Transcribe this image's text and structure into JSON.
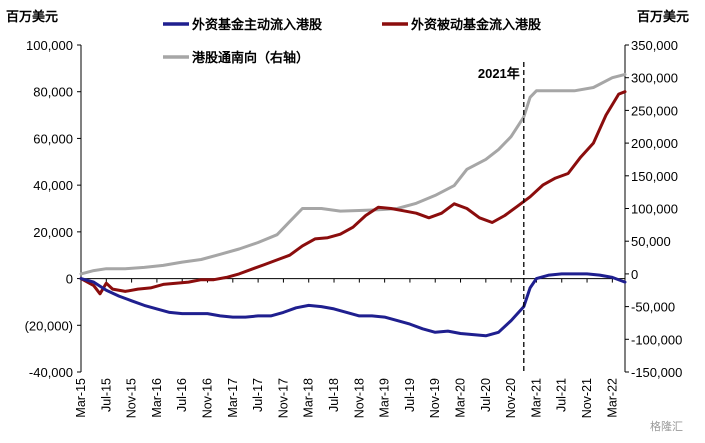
{
  "chart_data": {
    "type": "line",
    "y_left_label": "百万美元",
    "y_right_label": "百万美元",
    "y_left_lim": [
      -40000,
      100000
    ],
    "y_right_lim": [
      -150000,
      350000
    ],
    "y_left_ticks": [
      "100,000",
      "80,000",
      "60,000",
      "40,000",
      "20,000",
      "0",
      "(20,000)",
      "-40,000"
    ],
    "y_right_ticks": [
      "350,000",
      "300,000",
      "250,000",
      "200,000",
      "150,000",
      "100,000",
      "50,000",
      "0",
      "-50,000",
      "-100,000",
      "-150,000"
    ],
    "x_ticks": [
      "Mar-15",
      "Jul-15",
      "Nov-15",
      "Mar-16",
      "Jul-16",
      "Nov-16",
      "Mar-17",
      "Jul-17",
      "Nov-17",
      "Mar-18",
      "Jul-18",
      "Nov-18",
      "Mar-19",
      "Jul-19",
      "Nov-19",
      "Mar-20",
      "Jul-20",
      "Nov-20",
      "Mar-21",
      "Jul-21",
      "Nov-21",
      "Mar-22"
    ],
    "annotation": "2021年",
    "annotation_x": "2021-01",
    "grid": false,
    "legend_position": "top",
    "series": [
      {
        "name": "外资基金主动流入港股",
        "axis": "left",
        "color": "#1f1f8f",
        "points": [
          [
            "2015-03",
            0
          ],
          [
            "2015-05",
            -1500
          ],
          [
            "2015-07",
            -5000
          ],
          [
            "2015-09",
            -7500
          ],
          [
            "2015-11",
            -9500
          ],
          [
            "2016-01",
            -11500
          ],
          [
            "2016-03",
            -13000
          ],
          [
            "2016-05",
            -14500
          ],
          [
            "2016-07",
            -15000
          ],
          [
            "2016-09",
            -15000
          ],
          [
            "2016-11",
            -15000
          ],
          [
            "2017-01",
            -16000
          ],
          [
            "2017-03",
            -16500
          ],
          [
            "2017-05",
            -16500
          ],
          [
            "2017-07",
            -16000
          ],
          [
            "2017-09",
            -16000
          ],
          [
            "2017-11",
            -14500
          ],
          [
            "2018-01",
            -12500
          ],
          [
            "2018-03",
            -11500
          ],
          [
            "2018-05",
            -12000
          ],
          [
            "2018-07",
            -13000
          ],
          [
            "2018-09",
            -14500
          ],
          [
            "2018-11",
            -16000
          ],
          [
            "2019-01",
            -16000
          ],
          [
            "2019-03",
            -16500
          ],
          [
            "2019-05",
            -18000
          ],
          [
            "2019-07",
            -19500
          ],
          [
            "2019-09",
            -21500
          ],
          [
            "2019-11",
            -23000
          ],
          [
            "2020-01",
            -22500
          ],
          [
            "2020-03",
            -23500
          ],
          [
            "2020-05",
            -24000
          ],
          [
            "2020-07",
            -24500
          ],
          [
            "2020-09",
            -23000
          ],
          [
            "2020-11",
            -18000
          ],
          [
            "2021-01",
            -12000
          ],
          [
            "2021-02",
            -4000
          ],
          [
            "2021-03",
            0
          ],
          [
            "2021-05",
            1500
          ],
          [
            "2021-07",
            2000
          ],
          [
            "2021-09",
            2000
          ],
          [
            "2021-11",
            2000
          ],
          [
            "2022-01",
            1500
          ],
          [
            "2022-03",
            500
          ],
          [
            "2022-05",
            -1500
          ]
        ]
      },
      {
        "name": "外资被动基金流入港股",
        "axis": "left",
        "color": "#8b0d0d",
        "points": [
          [
            "2015-03",
            0
          ],
          [
            "2015-05",
            -3000
          ],
          [
            "2015-06",
            -6500
          ],
          [
            "2015-07",
            -2000
          ],
          [
            "2015-08",
            -4500
          ],
          [
            "2015-10",
            -5500
          ],
          [
            "2015-12",
            -4500
          ],
          [
            "2016-02",
            -4000
          ],
          [
            "2016-04",
            -2500
          ],
          [
            "2016-06",
            -2000
          ],
          [
            "2016-08",
            -1500
          ],
          [
            "2016-10",
            -500
          ],
          [
            "2016-12",
            -500
          ],
          [
            "2017-02",
            500
          ],
          [
            "2017-04",
            2000
          ],
          [
            "2017-06",
            4000
          ],
          [
            "2017-08",
            6000
          ],
          [
            "2017-10",
            8000
          ],
          [
            "2017-12",
            10000
          ],
          [
            "2018-02",
            14000
          ],
          [
            "2018-04",
            17000
          ],
          [
            "2018-06",
            17500
          ],
          [
            "2018-08",
            19000
          ],
          [
            "2018-10",
            22000
          ],
          [
            "2018-12",
            27000
          ],
          [
            "2019-02",
            30500
          ],
          [
            "2019-04",
            30000
          ],
          [
            "2019-06",
            29000
          ],
          [
            "2019-08",
            28000
          ],
          [
            "2019-10",
            26000
          ],
          [
            "2019-12",
            28000
          ],
          [
            "2020-02",
            32000
          ],
          [
            "2020-04",
            30000
          ],
          [
            "2020-06",
            26000
          ],
          [
            "2020-08",
            24000
          ],
          [
            "2020-10",
            27000
          ],
          [
            "2020-12",
            31000
          ],
          [
            "2021-02",
            35000
          ],
          [
            "2021-04",
            40000
          ],
          [
            "2021-06",
            43000
          ],
          [
            "2021-08",
            45000
          ],
          [
            "2021-10",
            52000
          ],
          [
            "2021-12",
            58000
          ],
          [
            "2022-02",
            70000
          ],
          [
            "2022-04",
            79000
          ],
          [
            "2022-05",
            80000
          ]
        ]
      },
      {
        "name": "港股通南向（右轴）",
        "axis": "right",
        "color": "#a6a6a6",
        "points": [
          [
            "2015-03",
            0
          ],
          [
            "2015-05",
            5000
          ],
          [
            "2015-07",
            8000
          ],
          [
            "2015-10",
            8000
          ],
          [
            "2016-01",
            10000
          ],
          [
            "2016-04",
            13000
          ],
          [
            "2016-07",
            18000
          ],
          [
            "2016-10",
            22000
          ],
          [
            "2017-01",
            30000
          ],
          [
            "2017-04",
            38000
          ],
          [
            "2017-07",
            48000
          ],
          [
            "2017-10",
            60000
          ],
          [
            "2017-12",
            80000
          ],
          [
            "2018-02",
            100000
          ],
          [
            "2018-05",
            100000
          ],
          [
            "2018-08",
            96000
          ],
          [
            "2018-11",
            97000
          ],
          [
            "2019-02",
            98000
          ],
          [
            "2019-05",
            100000
          ],
          [
            "2019-08",
            108000
          ],
          [
            "2019-11",
            120000
          ],
          [
            "2020-02",
            135000
          ],
          [
            "2020-04",
            160000
          ],
          [
            "2020-07",
            175000
          ],
          [
            "2020-09",
            190000
          ],
          [
            "2020-11",
            210000
          ],
          [
            "2021-01",
            240000
          ],
          [
            "2021-02",
            270000
          ],
          [
            "2021-03",
            280000
          ],
          [
            "2021-06",
            280000
          ],
          [
            "2021-09",
            280000
          ],
          [
            "2021-12",
            285000
          ],
          [
            "2022-03",
            300000
          ],
          [
            "2022-05",
            305000
          ]
        ]
      }
    ]
  },
  "watermark": "格隆汇"
}
